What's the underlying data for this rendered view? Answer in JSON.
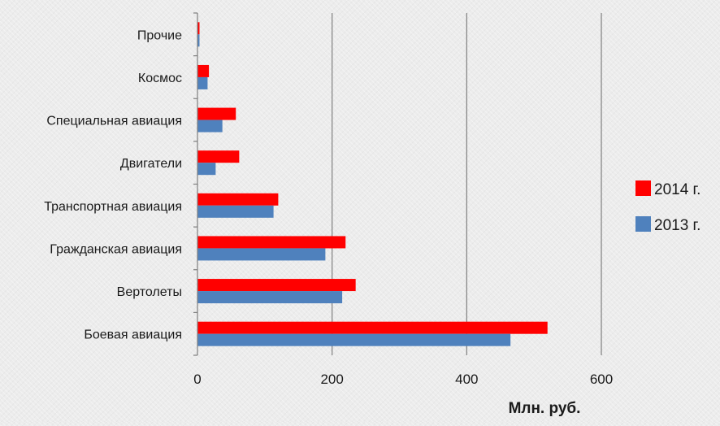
{
  "chart_data": {
    "type": "bar",
    "orientation": "horizontal",
    "categories": [
      "Боевая авиация",
      "Вертолеты",
      "Гражданская авиация",
      "Транспортная авиация",
      "Двигатели",
      "Специальная авиация",
      "Космос",
      "Прочие"
    ],
    "series": [
      {
        "name": "2014 г.",
        "color": "#ff0000",
        "values": [
          520,
          235,
          220,
          120,
          62,
          57,
          17,
          3
        ]
      },
      {
        "name": "2013 г.",
        "color": "#4f81bd",
        "values": [
          465,
          215,
          190,
          113,
          27,
          37,
          15,
          3
        ]
      }
    ],
    "title": "",
    "xlabel": "Млн. руб.",
    "ylabel": "",
    "xlim": [
      0,
      600
    ],
    "xticks": [
      0,
      200,
      400,
      600
    ],
    "grid": "vertical",
    "legend_position": "right"
  }
}
